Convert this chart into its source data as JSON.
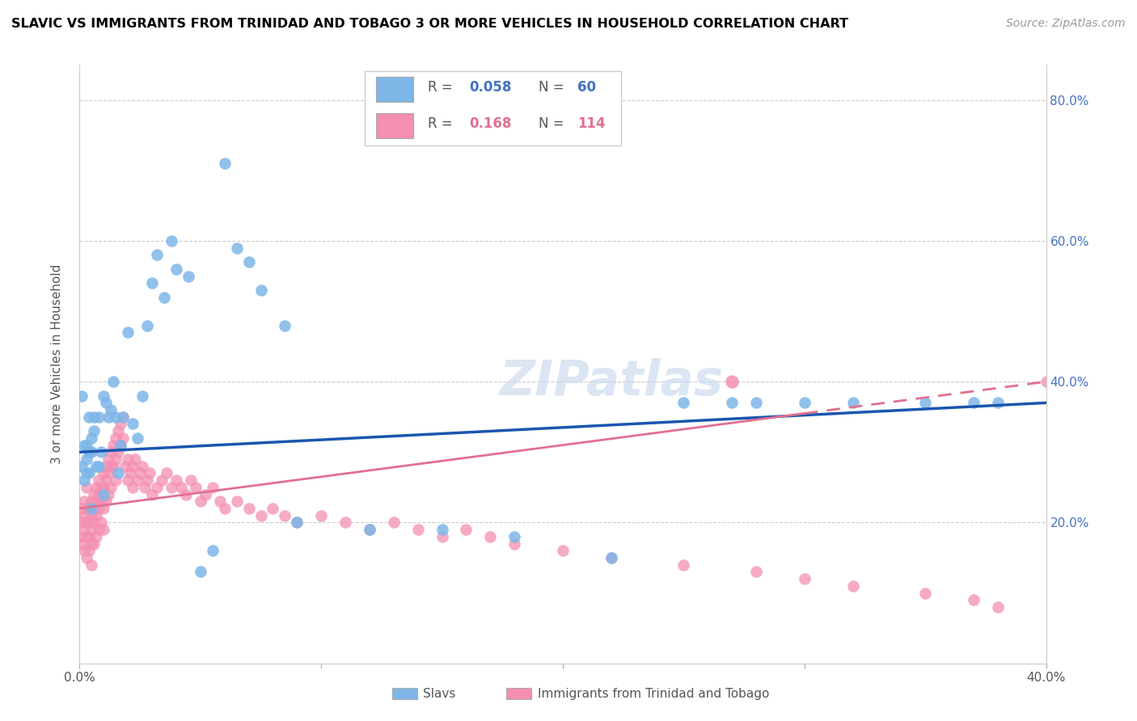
{
  "title": "SLAVIC VS IMMIGRANTS FROM TRINIDAD AND TOBAGO 3 OR MORE VEHICLES IN HOUSEHOLD CORRELATION CHART",
  "source": "Source: ZipAtlas.com",
  "ylabel": "3 or more Vehicles in Household",
  "xlim": [
    0.0,
    0.4
  ],
  "ylim": [
    0.0,
    0.85
  ],
  "slavs_R": "0.058",
  "slavs_N": "60",
  "immigrants_R": "0.168",
  "immigrants_N": "114",
  "slavs_color": "#7EB6E8",
  "immigrants_color": "#F48FB1",
  "slavs_line_color": "#1A56B0",
  "immigrants_line_color": "#E07090",
  "slavs_x": [
    0.001,
    0.001,
    0.002,
    0.002,
    0.003,
    0.003,
    0.003,
    0.004,
    0.004,
    0.004,
    0.005,
    0.005,
    0.005,
    0.006,
    0.006,
    0.007,
    0.008,
    0.008,
    0.009,
    0.01,
    0.01,
    0.011,
    0.012,
    0.013,
    0.014,
    0.015,
    0.016,
    0.017,
    0.018,
    0.02,
    0.022,
    0.024,
    0.026,
    0.028,
    0.03,
    0.032,
    0.035,
    0.038,
    0.04,
    0.045,
    0.05,
    0.055,
    0.06,
    0.065,
    0.07,
    0.075,
    0.085,
    0.09,
    0.12,
    0.15,
    0.18,
    0.22,
    0.25,
    0.27,
    0.28,
    0.3,
    0.32,
    0.35,
    0.37,
    0.38
  ],
  "slavs_y": [
    0.28,
    0.38,
    0.31,
    0.26,
    0.29,
    0.31,
    0.27,
    0.3,
    0.35,
    0.27,
    0.3,
    0.32,
    0.22,
    0.33,
    0.35,
    0.28,
    0.35,
    0.28,
    0.3,
    0.38,
    0.24,
    0.37,
    0.35,
    0.36,
    0.4,
    0.35,
    0.27,
    0.31,
    0.35,
    0.47,
    0.34,
    0.32,
    0.38,
    0.48,
    0.54,
    0.58,
    0.52,
    0.6,
    0.56,
    0.55,
    0.13,
    0.16,
    0.71,
    0.59,
    0.57,
    0.53,
    0.48,
    0.2,
    0.19,
    0.19,
    0.18,
    0.15,
    0.37,
    0.37,
    0.37,
    0.37,
    0.37,
    0.37,
    0.37,
    0.37
  ],
  "immigrants_x": [
    0.0005,
    0.001,
    0.001,
    0.001,
    0.002,
    0.002,
    0.002,
    0.002,
    0.003,
    0.003,
    0.003,
    0.003,
    0.003,
    0.004,
    0.004,
    0.004,
    0.004,
    0.005,
    0.005,
    0.005,
    0.005,
    0.005,
    0.006,
    0.006,
    0.006,
    0.006,
    0.007,
    0.007,
    0.007,
    0.007,
    0.008,
    0.008,
    0.008,
    0.008,
    0.009,
    0.009,
    0.009,
    0.01,
    0.01,
    0.01,
    0.01,
    0.011,
    0.011,
    0.011,
    0.012,
    0.012,
    0.012,
    0.013,
    0.013,
    0.013,
    0.014,
    0.014,
    0.015,
    0.015,
    0.015,
    0.016,
    0.016,
    0.017,
    0.017,
    0.018,
    0.018,
    0.019,
    0.02,
    0.02,
    0.021,
    0.022,
    0.022,
    0.023,
    0.024,
    0.025,
    0.026,
    0.027,
    0.028,
    0.029,
    0.03,
    0.032,
    0.034,
    0.036,
    0.038,
    0.04,
    0.042,
    0.044,
    0.046,
    0.048,
    0.05,
    0.052,
    0.055,
    0.058,
    0.06,
    0.065,
    0.07,
    0.075,
    0.08,
    0.085,
    0.09,
    0.1,
    0.11,
    0.12,
    0.13,
    0.14,
    0.15,
    0.16,
    0.17,
    0.18,
    0.2,
    0.22,
    0.25,
    0.28,
    0.3,
    0.32,
    0.35,
    0.37,
    0.38,
    0.4
  ],
  "immigrants_y": [
    0.18,
    0.2,
    0.17,
    0.22,
    0.21,
    0.19,
    0.16,
    0.23,
    0.22,
    0.2,
    0.18,
    0.15,
    0.25,
    0.22,
    0.2,
    0.18,
    0.16,
    0.23,
    0.21,
    0.19,
    0.17,
    0.14,
    0.24,
    0.22,
    0.2,
    0.17,
    0.25,
    0.23,
    0.21,
    0.18,
    0.26,
    0.24,
    0.22,
    0.19,
    0.25,
    0.23,
    0.2,
    0.27,
    0.25,
    0.22,
    0.19,
    0.28,
    0.26,
    0.23,
    0.29,
    0.27,
    0.24,
    0.3,
    0.28,
    0.25,
    0.31,
    0.28,
    0.32,
    0.29,
    0.26,
    0.33,
    0.3,
    0.34,
    0.31,
    0.35,
    0.32,
    0.28,
    0.29,
    0.26,
    0.27,
    0.28,
    0.25,
    0.29,
    0.26,
    0.27,
    0.28,
    0.25,
    0.26,
    0.27,
    0.24,
    0.25,
    0.26,
    0.27,
    0.25,
    0.26,
    0.25,
    0.24,
    0.26,
    0.25,
    0.23,
    0.24,
    0.25,
    0.23,
    0.22,
    0.23,
    0.22,
    0.21,
    0.22,
    0.21,
    0.2,
    0.21,
    0.2,
    0.19,
    0.2,
    0.19,
    0.18,
    0.19,
    0.18,
    0.17,
    0.16,
    0.15,
    0.14,
    0.13,
    0.12,
    0.11,
    0.1,
    0.09,
    0.08,
    0.4
  ],
  "slavs_line": [
    [
      0.0,
      0.4
    ],
    [
      0.3,
      0.37
    ]
  ],
  "imm_line_solid": [
    [
      0.0,
      0.3
    ],
    [
      0.22,
      0.355
    ]
  ],
  "imm_line_dash": [
    [
      0.3,
      0.4
    ],
    [
      0.355,
      0.4
    ]
  ]
}
